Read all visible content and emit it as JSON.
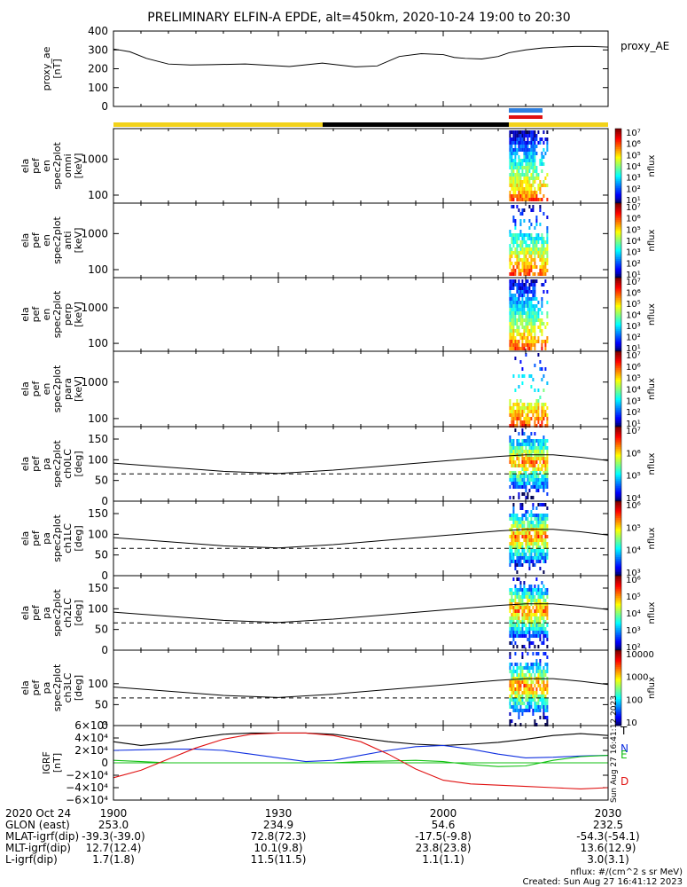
{
  "title": "PRELIMINARY ELFIN-A EPDE, alt=450km, 2020-10-24 19:00 to 20:30",
  "colors": {
    "sun_bar": "#f2d21a",
    "eclipse_bar": "#000000",
    "science_blue": "#2e7fe0",
    "science_red": "#e01010",
    "curve_T": "#000000",
    "curve_N": "#1030e0",
    "curve_E": "#10c010",
    "curve_D": "#e01010"
  },
  "time_axis": {
    "tick_labels": [
      "1900",
      "1930",
      "2000",
      "2030"
    ],
    "start_minutes": 0,
    "end_minutes": 90
  },
  "chart_data": [
    {
      "id": "proxy_ae",
      "type": "line",
      "ylabel": [
        "proxy_ae",
        "[nT]"
      ],
      "right_label": "proxy_AE",
      "yticks": [
        "400",
        "300",
        "200",
        "100",
        "0"
      ],
      "ylim": [
        0,
        400
      ],
      "x_minutes": [
        0,
        3,
        6,
        10,
        14,
        18,
        24,
        32,
        38,
        44,
        48,
        52,
        56,
        60,
        62,
        64,
        67,
        70,
        72,
        75,
        78,
        81,
        84,
        87,
        90
      ],
      "values": [
        305,
        290,
        255,
        225,
        220,
        222,
        225,
        212,
        230,
        210,
        215,
        265,
        280,
        275,
        260,
        255,
        252,
        265,
        285,
        300,
        310,
        315,
        318,
        318,
        315
      ]
    },
    {
      "id": "ela_pef_en_spec2plot_omni",
      "type": "heatmap",
      "ylabel": [
        "ela",
        "pef",
        "en",
        "spec2plot",
        "omni",
        "[keV]"
      ],
      "yscale": "log",
      "yticks": [
        "1000",
        "100"
      ],
      "ylim": [
        60,
        7000
      ],
      "colorbar": {
        "label": "nflux",
        "ticks": [
          "10⁷",
          "10⁶",
          "10⁵",
          "10⁴",
          "10³",
          "10²",
          "10¹"
        ]
      },
      "active_window_minutes": [
        72,
        79
      ]
    },
    {
      "id": "ela_pef_en_spec2plot_anti",
      "type": "heatmap",
      "ylabel": [
        "ela",
        "pef",
        "en",
        "spec2plot",
        "anti",
        "[keV]"
      ],
      "yscale": "log",
      "yticks": [
        "1000",
        "100"
      ],
      "ylim": [
        60,
        7000
      ],
      "colorbar": {
        "label": "nflux",
        "ticks": [
          "10⁷",
          "10⁶",
          "10⁵",
          "10⁴",
          "10³",
          "10²",
          "10¹"
        ]
      },
      "active_window_minutes": [
        72,
        79
      ]
    },
    {
      "id": "ela_pef_en_spec2plot_perp",
      "type": "heatmap",
      "ylabel": [
        "ela",
        "pef",
        "en",
        "spec2plot",
        "perp",
        "[keV]"
      ],
      "yscale": "log",
      "yticks": [
        "1000",
        "100"
      ],
      "ylim": [
        60,
        7000
      ],
      "colorbar": {
        "label": "nflux",
        "ticks": [
          "10⁷",
          "10⁶",
          "10⁵",
          "10⁴",
          "10³",
          "10²",
          "10¹"
        ]
      },
      "active_window_minutes": [
        72,
        79
      ]
    },
    {
      "id": "ela_pef_en_spec2plot_para",
      "type": "heatmap",
      "ylabel": [
        "ela",
        "pef",
        "en",
        "spec2plot",
        "para",
        "[keV]"
      ],
      "yscale": "log",
      "yticks": [
        "1000",
        "100"
      ],
      "ylim": [
        60,
        7000
      ],
      "colorbar": {
        "label": "nflux",
        "ticks": [
          "10⁷",
          "10⁶",
          "10⁵",
          "10⁴",
          "10³",
          "10²",
          "10¹"
        ]
      },
      "active_window_minutes": [
        72,
        79
      ]
    },
    {
      "id": "ela_pef_pa_spec2plot_ch0LC",
      "type": "heatmap",
      "ylabel": [
        "ela",
        "pef",
        "pa",
        "spec2plot",
        "ch0LC",
        "[deg]"
      ],
      "yscale": "linear",
      "yticks": [
        "150",
        "100",
        "50",
        "0"
      ],
      "ylim": [
        0,
        180
      ],
      "colorbar": {
        "label": "nflux",
        "ticks": [
          "10⁷",
          "10⁶",
          "10⁵",
          "10⁴"
        ]
      },
      "active_window_minutes": [
        72,
        79
      ],
      "overlay_solid_x": [
        0,
        10,
        20,
        30,
        40,
        50,
        60,
        70,
        75,
        80,
        85,
        90
      ],
      "overlay_solid_y": [
        92,
        82,
        72,
        67,
        75,
        86,
        97,
        108,
        112,
        112,
        106,
        98
      ],
      "overlay_dashed_y": 66
    },
    {
      "id": "ela_pef_pa_spec2plot_ch1LC",
      "type": "heatmap",
      "ylabel": [
        "ela",
        "pef",
        "pa",
        "spec2plot",
        "ch1LC",
        "[deg]"
      ],
      "yscale": "linear",
      "yticks": [
        "150",
        "100",
        "50",
        "0"
      ],
      "ylim": [
        0,
        180
      ],
      "colorbar": {
        "label": "nflux",
        "ticks": [
          "10⁶",
          "10⁵",
          "10⁴",
          "10³"
        ]
      },
      "active_window_minutes": [
        72,
        79
      ],
      "overlay_solid_x": [
        0,
        10,
        20,
        30,
        40,
        50,
        60,
        70,
        75,
        80,
        85,
        90
      ],
      "overlay_solid_y": [
        92,
        82,
        72,
        67,
        75,
        86,
        97,
        108,
        112,
        112,
        106,
        98
      ],
      "overlay_dashed_y": 66
    },
    {
      "id": "ela_pef_pa_spec2plot_ch2LC",
      "type": "heatmap",
      "ylabel": [
        "ela",
        "pef",
        "pa",
        "spec2plot",
        "ch2LC",
        "[deg]"
      ],
      "yscale": "linear",
      "yticks": [
        "150",
        "100",
        "50",
        "0"
      ],
      "ylim": [
        0,
        180
      ],
      "colorbar": {
        "label": "nflux",
        "ticks": [
          "10⁶",
          "10⁵",
          "10⁴",
          "10³",
          "10²"
        ]
      },
      "active_window_minutes": [
        72,
        79
      ],
      "overlay_solid_x": [
        0,
        10,
        20,
        30,
        40,
        50,
        60,
        70,
        75,
        80,
        85,
        90
      ],
      "overlay_solid_y": [
        92,
        82,
        72,
        67,
        75,
        86,
        97,
        108,
        112,
        112,
        106,
        98
      ],
      "overlay_dashed_y": 66
    },
    {
      "id": "ela_pef_pa_spec2plot_ch3LC",
      "type": "heatmap",
      "ylabel": [
        "ela",
        "pef",
        "pa",
        "spec2plot",
        "ch3LC",
        "[deg]"
      ],
      "yscale": "linear",
      "yticks": [
        "100",
        "50",
        "0"
      ],
      "ylim": [
        0,
        180
      ],
      "colorbar": {
        "label": "nflux",
        "ticks": [
          "10000",
          "1000",
          "100",
          "10"
        ]
      },
      "active_window_minutes": [
        72,
        79
      ],
      "overlay_solid_x": [
        0,
        10,
        20,
        30,
        40,
        50,
        60,
        70,
        75,
        80,
        85,
        90
      ],
      "overlay_solid_y": [
        92,
        82,
        72,
        67,
        75,
        86,
        97,
        108,
        112,
        112,
        106,
        98
      ],
      "overlay_dashed_y": 66
    },
    {
      "id": "igrf",
      "type": "line",
      "ylabel": [
        "IGRF",
        "[nT]"
      ],
      "yticks": [
        "6×10⁴",
        "4×10⁴",
        "2×10⁴",
        "0",
        "−2×10⁴",
        "−4×10⁴",
        "−6×10⁴"
      ],
      "ylim": [
        -60000,
        60000
      ],
      "x_minutes": [
        0,
        5,
        10,
        15,
        20,
        25,
        30,
        35,
        40,
        45,
        50,
        55,
        60,
        65,
        70,
        75,
        80,
        85,
        90
      ],
      "series": [
        {
          "name": "T",
          "values": [
            34000,
            28000,
            32000,
            40000,
            46000,
            48000,
            48000,
            48000,
            46000,
            40000,
            34000,
            30000,
            28000,
            30000,
            33000,
            38000,
            44000,
            47000,
            44000
          ]
        },
        {
          "name": "N",
          "values": [
            20000,
            21000,
            22000,
            22000,
            20000,
            14000,
            8000,
            2000,
            4000,
            12000,
            20000,
            26000,
            28000,
            22000,
            14000,
            8000,
            9000,
            11000,
            12000
          ]
        },
        {
          "name": "E",
          "values": [
            4000,
            2000,
            0,
            0,
            0,
            0,
            0,
            0,
            0,
            2000,
            3000,
            4000,
            2000,
            -3000,
            -6000,
            -5000,
            4000,
            10000,
            12000
          ]
        },
        {
          "name": "D",
          "values": [
            -24000,
            -12000,
            6000,
            24000,
            38000,
            46000,
            48000,
            48000,
            44000,
            34000,
            14000,
            -10000,
            -28000,
            -34000,
            -36000,
            -38000,
            -40000,
            -42000,
            -40000
          ]
        }
      ]
    }
  ],
  "footer": {
    "rows": [
      {
        "label": "2020 Oct 24",
        "values": [
          "1900",
          "1930",
          "2000",
          "2030"
        ]
      },
      {
        "label": "GLON (east)",
        "values": [
          "253.0",
          "234.9",
          "54.6",
          "232.5"
        ]
      },
      {
        "label": "MLAT-igrf(dip)",
        "values": [
          "-39.3(-39.0)",
          "72.8(72.3)",
          "-17.5(-9.8)",
          "-54.3(-54.1)"
        ]
      },
      {
        "label": "MLT-igrf(dip)",
        "values": [
          "12.7(12.4)",
          "10.1(9.8)",
          "23.8(23.8)",
          "13.6(12.9)"
        ]
      },
      {
        "label": "L-igrf(dip)",
        "values": [
          "1.7(1.8)",
          "11.5(11.5)",
          "1.1(1.1)",
          "3.0(3.1)"
        ]
      }
    ],
    "units_note": "nflux: #/(cm^2 s sr MeV)",
    "created": "Created: Sun Aug 27 16:41:12 2023",
    "side_stamp": "Sun Aug 27 16:41:12 2023"
  }
}
